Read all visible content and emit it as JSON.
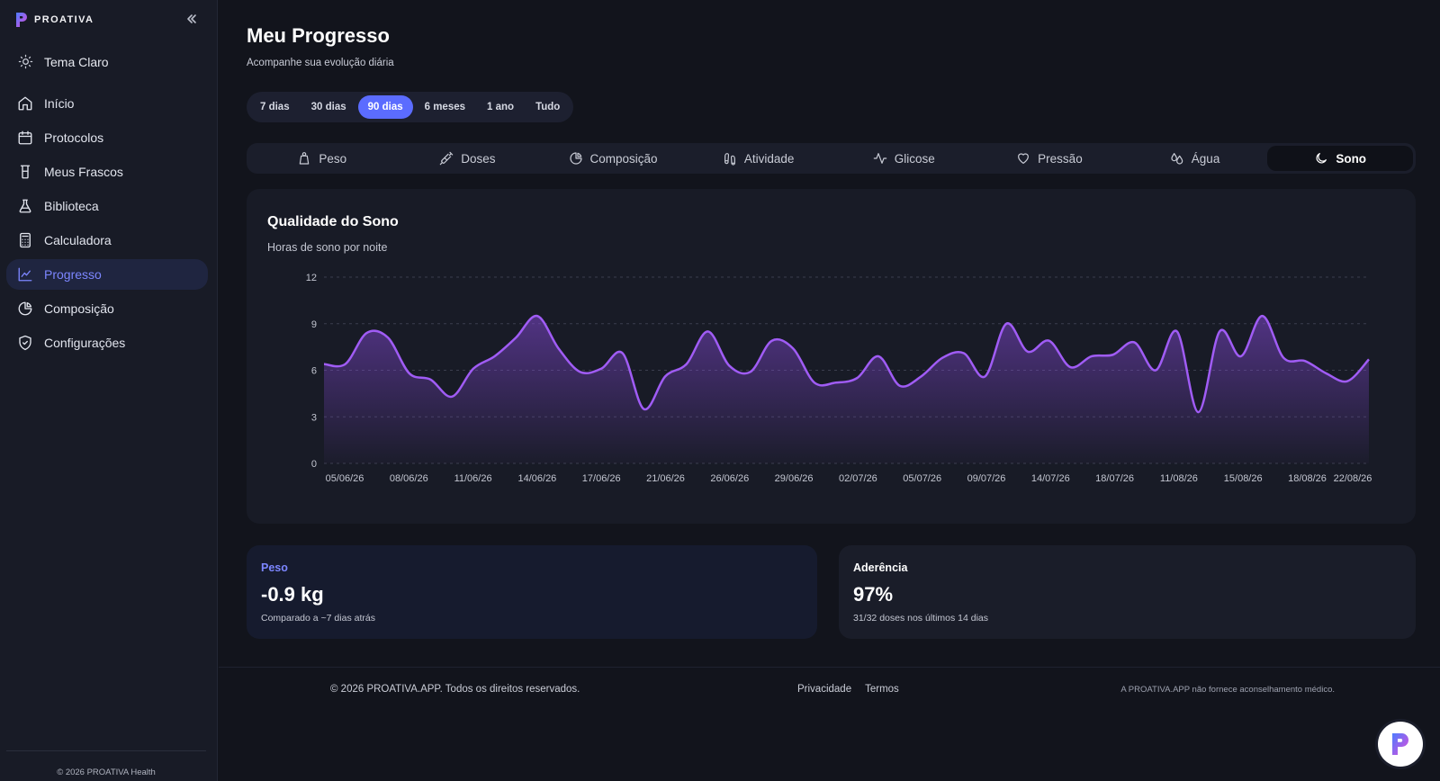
{
  "brand": {
    "name": "PROATIVA",
    "accent": "#7b5cff"
  },
  "sidebar": {
    "collapse_icon": "chevrons-left-icon",
    "theme_toggle": {
      "label": "Tema Claro",
      "icon": "sun-icon"
    },
    "items": [
      {
        "label": "Início",
        "icon": "home-icon"
      },
      {
        "label": "Protocolos",
        "icon": "calendar-icon"
      },
      {
        "label": "Meus Frascos",
        "icon": "vial-icon"
      },
      {
        "label": "Biblioteca",
        "icon": "flask-icon"
      },
      {
        "label": "Calculadora",
        "icon": "calculator-icon"
      },
      {
        "label": "Progresso",
        "icon": "line-chart-icon",
        "active": true
      },
      {
        "label": "Composição",
        "icon": "pie-chart-icon"
      },
      {
        "label": "Configurações",
        "icon": "shield-check-icon"
      }
    ],
    "footer": "© 2026 PROATIVA Health"
  },
  "header": {
    "title": "Meu Progresso",
    "subtitle": "Acompanhe sua evolução diária"
  },
  "ranges": {
    "items": [
      "7 dias",
      "30 dias",
      "90 dias",
      "6 meses",
      "1 ano",
      "Tudo"
    ],
    "selected": "90 dias"
  },
  "metric_tabs": {
    "items": [
      {
        "label": "Peso",
        "icon": "scale-icon"
      },
      {
        "label": "Doses",
        "icon": "syringe-icon"
      },
      {
        "label": "Composição",
        "icon": "pie-chart-icon"
      },
      {
        "label": "Atividade",
        "icon": "footprints-icon"
      },
      {
        "label": "Glicose",
        "icon": "activity-icon"
      },
      {
        "label": "Pressão",
        "icon": "heart-icon"
      },
      {
        "label": "Água",
        "icon": "droplets-icon"
      },
      {
        "label": "Sono",
        "icon": "moon-icon"
      }
    ],
    "selected": "Sono"
  },
  "chart_card": {
    "title": "Qualidade do Sono",
    "subtitle": "Horas de sono por noite"
  },
  "chart_data": {
    "type": "area",
    "title": "Qualidade do Sono",
    "subtitle": "Horas de sono por noite",
    "ylim": [
      0,
      12
    ],
    "yticks": [
      0,
      3,
      6,
      9,
      12
    ],
    "grid": true,
    "xtick_labels": [
      "05/06/26",
      "08/06/26",
      "11/06/26",
      "14/06/26",
      "17/06/26",
      "21/06/26",
      "26/06/26",
      "29/06/26",
      "02/07/26",
      "05/07/26",
      "09/07/26",
      "14/07/26",
      "18/07/26",
      "11/08/26",
      "15/08/26",
      "18/08/26",
      "22/08/26"
    ],
    "series": [
      {
        "color": "#a05cf5",
        "values": [
          6.4,
          6.4,
          8.4,
          8.1,
          5.8,
          5.4,
          4.3,
          6.1,
          6.9,
          8.1,
          9.5,
          7.4,
          5.9,
          6.1,
          7.1,
          3.5,
          5.6,
          6.4,
          8.5,
          6.3,
          5.9,
          7.9,
          7.4,
          5.2,
          5.2,
          5.5,
          6.9,
          5.0,
          5.6,
          6.8,
          7.1,
          5.6,
          9.0,
          7.2,
          7.9,
          6.2,
          6.9,
          7.0,
          7.8,
          6.0,
          8.5,
          3.3,
          8.5,
          6.9,
          9.5,
          6.8,
          6.6,
          5.8,
          5.3,
          6.7
        ]
      }
    ]
  },
  "stats": {
    "weight": {
      "label": "Peso",
      "value": "-0.9 kg",
      "note": "Comparado a ~7 dias atrás",
      "label_color": "#7c86ff"
    },
    "adherence": {
      "label": "Aderência",
      "value": "97%",
      "note": "31/32 doses nos últimos 14 dias",
      "label_color": "#ffffff"
    }
  },
  "footer": {
    "copyright": "© 2026 PROATIVA.APP. Todos os direitos reservados.",
    "links": [
      "Privacidade",
      "Termos"
    ],
    "disclaimer": "A PROATIVA.APP não fornece aconselhamento médico."
  },
  "fab": {
    "icon": "proativa-logo-icon"
  }
}
